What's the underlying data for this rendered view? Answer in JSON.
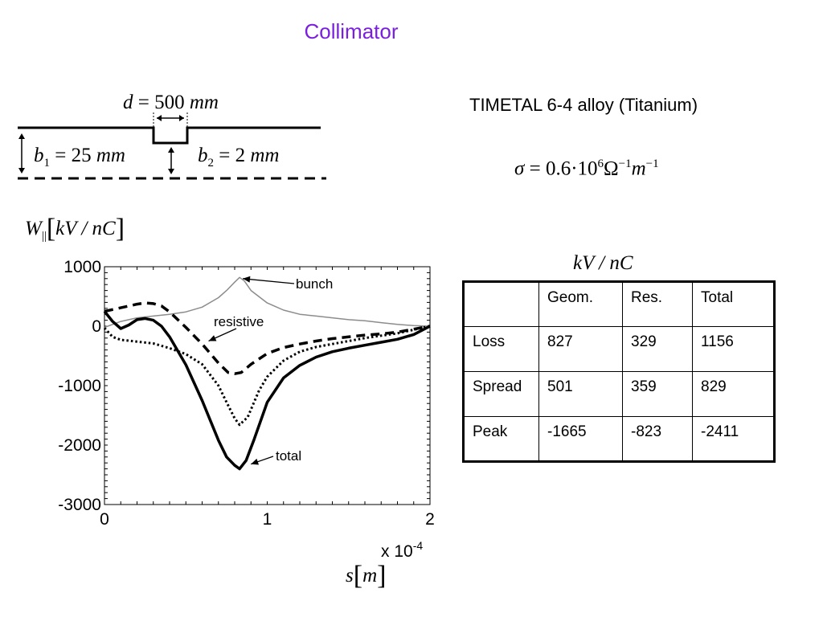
{
  "slide": {
    "title": "Collimator",
    "title_color": "#7a1fe0"
  },
  "geometry_sketch": {
    "d_symbol": "d",
    "d_value": "500",
    "d_unit": "mm",
    "b1_symbol": "b",
    "b1_sub": "1",
    "b1_value": "25",
    "b1_unit": "mm",
    "b2_symbol": "b",
    "b2_sub": "2",
    "b2_value": "2",
    "b2_unit": "mm",
    "eq": "="
  },
  "material": {
    "name": "TIMETAL 6-4 alloy (Titanium)",
    "sigma_symbol": "σ",
    "sigma_value": "0.6·10",
    "sigma_exp": "6",
    "sigma_unit1": "Ω",
    "sigma_unit1_exp": "−1",
    "sigma_unit2": "m",
    "sigma_unit2_exp": "−1"
  },
  "y_axis_title": {
    "symbol": "W",
    "sub": "||",
    "unit": "kV / nC"
  },
  "x_axis_title": {
    "symbol": "s",
    "unit": "m"
  },
  "chart_data": {
    "type": "line",
    "title": "",
    "xlabel": "s[m]",
    "ylabel": "W||[kV / nC]",
    "x_multiplier_label": "x 10",
    "x_multiplier_exp": "-4",
    "xlim": [
      0,
      2
    ],
    "ylim": [
      -3000,
      1000
    ],
    "xticks": [
      "0",
      "1",
      "2"
    ],
    "yticks": [
      "1000",
      "0",
      "-1000",
      "-2000",
      "-3000"
    ],
    "grid": false,
    "series": [
      {
        "name": "bunch",
        "color": "#8c8c8c",
        "style": "solid",
        "x": [
          0,
          0.1,
          0.2,
          0.3,
          0.4,
          0.5,
          0.6,
          0.7,
          0.75,
          0.8,
          0.83,
          0.86,
          0.9,
          1.0,
          1.1,
          1.2,
          1.3,
          1.4,
          1.5,
          1.6,
          1.7,
          1.8,
          1.9,
          2.0
        ],
        "y": [
          -20,
          80,
          140,
          170,
          200,
          240,
          320,
          480,
          600,
          740,
          820,
          760,
          600,
          390,
          270,
          200,
          170,
          140,
          110,
          90,
          60,
          30,
          10,
          0
        ]
      },
      {
        "name": "resistive",
        "color": "#000000",
        "style": "dashed",
        "x": [
          0,
          0.1,
          0.2,
          0.25,
          0.3,
          0.35,
          0.4,
          0.5,
          0.6,
          0.7,
          0.76,
          0.8,
          0.84,
          0.9,
          1.0,
          1.1,
          1.2,
          1.3,
          1.4,
          1.5,
          1.6,
          1.7,
          1.8,
          1.9,
          2.0
        ],
        "y": [
          250,
          310,
          370,
          390,
          380,
          340,
          240,
          -20,
          -300,
          -620,
          -780,
          -800,
          -780,
          -640,
          -460,
          -360,
          -300,
          -250,
          -210,
          -180,
          -150,
          -130,
          -100,
          -50,
          0
        ]
      },
      {
        "name": "",
        "color": "#000000",
        "style": "dotted",
        "x": [
          0,
          0.05,
          0.1,
          0.2,
          0.3,
          0.4,
          0.5,
          0.6,
          0.7,
          0.75,
          0.8,
          0.83,
          0.88,
          0.95,
          1.0,
          1.1,
          1.2,
          1.3,
          1.4,
          1.5,
          1.6,
          1.7,
          1.8,
          1.9,
          2.0
        ],
        "y": [
          -30,
          -180,
          -230,
          -260,
          -290,
          -370,
          -470,
          -640,
          -1000,
          -1280,
          -1550,
          -1660,
          -1530,
          -1080,
          -850,
          -580,
          -430,
          -350,
          -300,
          -250,
          -200,
          -160,
          -120,
          -60,
          0
        ]
      },
      {
        "name": "total",
        "color": "#000000",
        "style": "solid-thick",
        "x": [
          0,
          0.05,
          0.1,
          0.15,
          0.2,
          0.25,
          0.3,
          0.35,
          0.4,
          0.5,
          0.6,
          0.7,
          0.75,
          0.8,
          0.83,
          0.87,
          0.92,
          1.0,
          1.1,
          1.2,
          1.3,
          1.4,
          1.5,
          1.6,
          1.7,
          1.8,
          1.9,
          2.0
        ],
        "y": [
          250,
          80,
          -40,
          20,
          110,
          130,
          100,
          0,
          -180,
          -650,
          -1250,
          -1920,
          -2200,
          -2340,
          -2400,
          -2260,
          -1900,
          -1280,
          -870,
          -660,
          -520,
          -430,
          -370,
          -320,
          -270,
          -220,
          -140,
          0
        ]
      }
    ],
    "annotations": [
      {
        "label": "bunch",
        "target": [
          0.83,
          800
        ]
      },
      {
        "label": "resistive",
        "target": [
          0.62,
          -250
        ]
      },
      {
        "label": "total",
        "target": [
          0.88,
          -2320
        ]
      }
    ]
  },
  "table_unit": "kV / nC",
  "table": {
    "headers": [
      "",
      "Geom.",
      "Res.",
      "Total"
    ],
    "rows": [
      [
        "Loss",
        "827",
        "329",
        "1156"
      ],
      [
        "Spread",
        "501",
        "359",
        "829"
      ],
      [
        "Peak",
        "-1665",
        "-823",
        "-2411"
      ]
    ]
  }
}
